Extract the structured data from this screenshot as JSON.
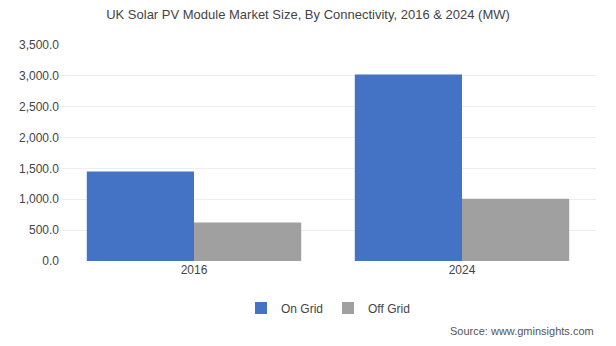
{
  "chart_data": {
    "type": "bar",
    "title": "UK Solar PV Module Market Size, By Connectivity, 2016 & 2024 (MW)",
    "categories": [
      "2016",
      "2024"
    ],
    "series": [
      {
        "name": "On Grid",
        "values": [
          1450,
          3020
        ],
        "color": "#4472C4"
      },
      {
        "name": "Off Grid",
        "values": [
          625,
          1010
        ],
        "color": "#A0A0A0"
      }
    ],
    "ylim": [
      0,
      3500
    ],
    "yticks": [
      {
        "value": 0,
        "label": "0.0"
      },
      {
        "value": 500,
        "label": "500.0"
      },
      {
        "value": 1000,
        "label": "1,000.0"
      },
      {
        "value": 1500,
        "label": "1,500.0"
      },
      {
        "value": 2000,
        "label": "2,000.0"
      },
      {
        "value": 2500,
        "label": "2,500.0"
      },
      {
        "value": 3000,
        "label": "3,000.0"
      },
      {
        "value": 3500,
        "label": "3,500.0"
      }
    ],
    "grid": true,
    "legend": "bottom",
    "annotations": [
      "Source: www.gminsights.com"
    ]
  }
}
